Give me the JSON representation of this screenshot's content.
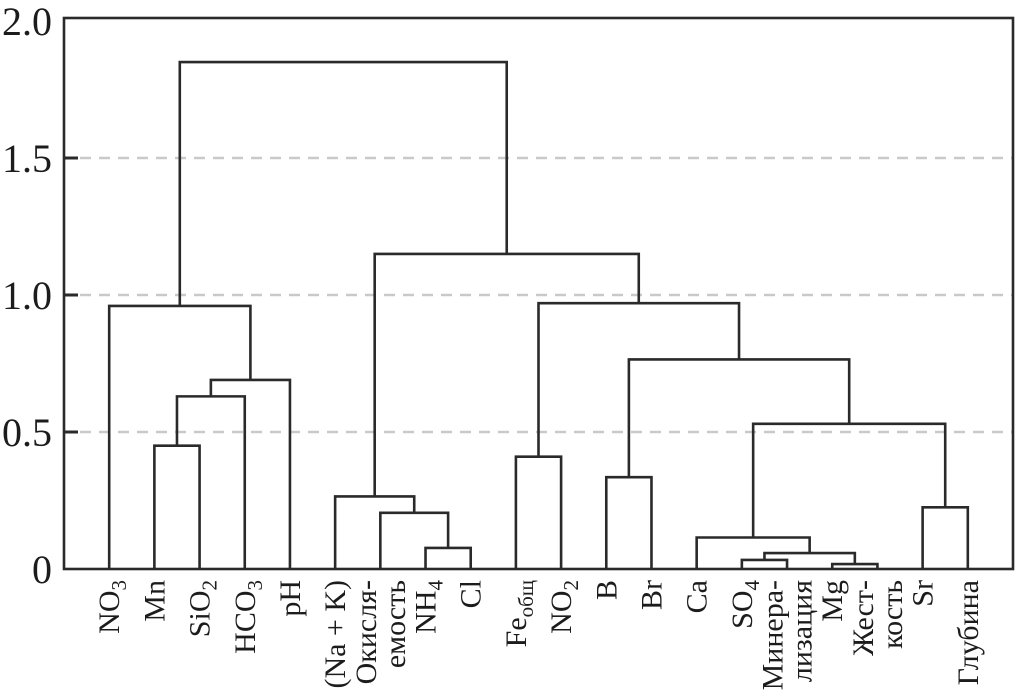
{
  "figure": {
    "title": "",
    "background": "#ffffff"
  },
  "chart_data": {
    "type": "dendrogram",
    "orientation": "top",
    "title": "",
    "xlabel": "",
    "ylabel": "",
    "ylim": [
      0,
      2.0
    ],
    "y_ticks": [
      {
        "value": 0,
        "label": "0"
      },
      {
        "value": 0.5,
        "label": "0.5"
      },
      {
        "value": 1.0,
        "label": "1.0"
      },
      {
        "value": 1.5,
        "label": "1.5"
      },
      {
        "value": 2.0,
        "label": "2.0"
      }
    ],
    "gridlines": {
      "values": [
        0.5,
        1.0,
        1.5
      ],
      "style": "dashed"
    },
    "frame": "box",
    "leaves": [
      "NO_{3}",
      "Mn",
      "SiO_{2}",
      "HCO_{3}",
      "pH",
      "(Na + K)",
      "Окисля-\nемость",
      "NH_{4}",
      "Cl",
      "Fe_{общ}",
      "NO_{2}",
      "B",
      "Br",
      "Ca",
      "SO_{4}",
      "Минера-\nлизация",
      "Mg",
      "Жест-\nкость",
      "Sr",
      "Глубина"
    ],
    "linkage": {
      "h": 1.85,
      "c": [
        {
          "h": 0.96,
          "c": [
            {
              "leaf": 0
            },
            {
              "h": 0.69,
              "c": [
                {
                  "h": 0.63,
                  "c": [
                    {
                      "h": 0.45,
                      "c": [
                        {
                          "leaf": 1
                        },
                        {
                          "leaf": 2
                        }
                      ]
                    },
                    {
                      "leaf": 3
                    }
                  ]
                },
                {
                  "leaf": 4
                }
              ]
            }
          ]
        },
        {
          "h": 1.15,
          "c": [
            {
              "h": 0.265,
              "c": [
                {
                  "leaf": 5
                },
                {
                  "h": 0.205,
                  "c": [
                    {
                      "leaf": 6
                    },
                    {
                      "h": 0.077,
                      "c": [
                        {
                          "leaf": 7
                        },
                        {
                          "leaf": 8
                        }
                      ]
                    }
                  ]
                }
              ]
            },
            {
              "h": 0.97,
              "c": [
                {
                  "h": 0.41,
                  "c": [
                    {
                      "leaf": 9
                    },
                    {
                      "leaf": 10
                    }
                  ]
                },
                {
                  "h": 0.765,
                  "c": [
                    {
                      "h": 0.335,
                      "c": [
                        {
                          "leaf": 11
                        },
                        {
                          "leaf": 12
                        }
                      ]
                    },
                    {
                      "h": 0.53,
                      "c": [
                        {
                          "h": 0.115,
                          "c": [
                            {
                              "leaf": 13
                            },
                            {
                              "h": 0.058,
                              "c": [
                                {
                                  "h": 0.033,
                                  "c": [
                                    {
                                      "leaf": 14
                                    },
                                    {
                                      "leaf": 15
                                    }
                                  ]
                                },
                                {
                                  "h": 0.018,
                                  "c": [
                                    {
                                      "leaf": 16
                                    },
                                    {
                                      "leaf": 17
                                    }
                                  ]
                                }
                              ]
                            }
                          ]
                        },
                        {
                          "h": 0.225,
                          "c": [
                            {
                              "leaf": 18
                            },
                            {
                              "leaf": 19
                            }
                          ]
                        }
                      ]
                    }
                  ]
                }
              ]
            }
          ]
        }
      ]
    },
    "colors": {
      "line": "#2a2a2a",
      "frame": "#2a2a2a",
      "grid": "#c9c9c9",
      "text": "#1c1c1c"
    }
  }
}
